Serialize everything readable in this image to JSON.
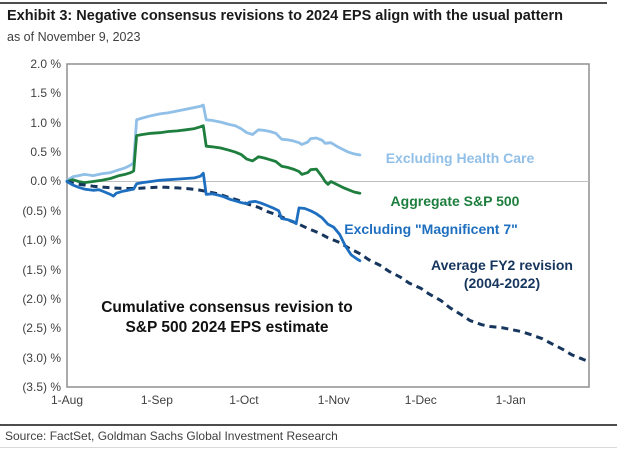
{
  "header": {
    "title": "Exhibit 3: Negative consensus revisions to 2024 EPS align with the usual pattern",
    "subtitle": "as of November 9, 2023"
  },
  "annotation": {
    "line1": "Cumulative consensus revision to",
    "line2": "S&P 500 2024 EPS estimate"
  },
  "footer": {
    "source": "Source: FactSet, Goldman Sachs Global Investment Research"
  },
  "chart_data": {
    "type": "line",
    "title": "Cumulative consensus revision to S&P 500 2024 EPS estimate",
    "as_of": "November 9, 2023",
    "grid": "zero-line-only",
    "legend_position": "inline-right",
    "x_axis": {
      "unit": "days since 1-Aug-2023",
      "range": [
        0,
        180
      ],
      "ticks": [
        {
          "day": 0,
          "label": "1-Aug"
        },
        {
          "day": 31,
          "label": "1-Sep"
        },
        {
          "day": 61,
          "label": "1-Oct"
        },
        {
          "day": 92,
          "label": "1-Nov"
        },
        {
          "day": 122,
          "label": "1-Dec"
        },
        {
          "day": 153,
          "label": "1-Jan"
        }
      ]
    },
    "y_axis": {
      "unit": "%",
      "range": [
        2.0,
        -3.5
      ],
      "ticks": [
        {
          "value": 2.0,
          "label": "2.0 %"
        },
        {
          "value": 1.5,
          "label": "1.5 %"
        },
        {
          "value": 1.0,
          "label": "1.0 %"
        },
        {
          "value": 0.5,
          "label": "0.5 %"
        },
        {
          "value": 0.0,
          "label": "0.0 %"
        },
        {
          "value": -0.5,
          "label": "(0.5) %"
        },
        {
          "value": -1.0,
          "label": "(1.0) %"
        },
        {
          "value": -1.5,
          "label": "(1.5) %"
        },
        {
          "value": -2.0,
          "label": "(2.0) %"
        },
        {
          "value": -2.5,
          "label": "(2.5) %"
        },
        {
          "value": -3.0,
          "label": "(3.0) %"
        },
        {
          "value": -3.5,
          "label": "(3.5) %"
        }
      ]
    },
    "series": [
      {
        "id": "excluding-health-care",
        "name": "Excluding Health Care",
        "color": "#90BFE8",
        "dashed": false,
        "points": [
          [
            0,
            0.02
          ],
          [
            2,
            0.08
          ],
          [
            4,
            0.1
          ],
          [
            6,
            0.12
          ],
          [
            9,
            0.1
          ],
          [
            12,
            0.13
          ],
          [
            15,
            0.15
          ],
          [
            18,
            0.2
          ],
          [
            20,
            0.23
          ],
          [
            22,
            0.28
          ],
          [
            23,
            0.32
          ],
          [
            24,
            1.05
          ],
          [
            26,
            1.08
          ],
          [
            29,
            1.12
          ],
          [
            32,
            1.15
          ],
          [
            35,
            1.17
          ],
          [
            38,
            1.2
          ],
          [
            41,
            1.23
          ],
          [
            44,
            1.26
          ],
          [
            46,
            1.28
          ],
          [
            47,
            1.3
          ],
          [
            48,
            1.05
          ],
          [
            50,
            1.04
          ],
          [
            53,
            1.01
          ],
          [
            56,
            0.97
          ],
          [
            58,
            0.95
          ],
          [
            60,
            0.9
          ],
          [
            62,
            0.83
          ],
          [
            64,
            0.8
          ],
          [
            66,
            0.88
          ],
          [
            68,
            0.87
          ],
          [
            70,
            0.85
          ],
          [
            72,
            0.82
          ],
          [
            74,
            0.72
          ],
          [
            76,
            0.71
          ],
          [
            78,
            0.69
          ],
          [
            80,
            0.66
          ],
          [
            81,
            0.63
          ],
          [
            83,
            0.67
          ],
          [
            84,
            0.73
          ],
          [
            86,
            0.74
          ],
          [
            88,
            0.7
          ],
          [
            89,
            0.65
          ],
          [
            91,
            0.66
          ],
          [
            93,
            0.6
          ],
          [
            95,
            0.55
          ],
          [
            97,
            0.5
          ],
          [
            99,
            0.47
          ],
          [
            101,
            0.45
          ]
        ]
      },
      {
        "id": "aggregate-sp500",
        "name": "Aggregate S&P 500",
        "color": "#1E7E3E",
        "dashed": false,
        "points": [
          [
            0,
            0.0
          ],
          [
            2,
            0.03
          ],
          [
            4,
            0.0
          ],
          [
            6,
            -0.02
          ],
          [
            9,
            0.0
          ],
          [
            12,
            0.02
          ],
          [
            15,
            0.05
          ],
          [
            18,
            0.1
          ],
          [
            20,
            0.12
          ],
          [
            22,
            0.15
          ],
          [
            23,
            0.18
          ],
          [
            24,
            0.78
          ],
          [
            26,
            0.8
          ],
          [
            29,
            0.82
          ],
          [
            32,
            0.83
          ],
          [
            35,
            0.85
          ],
          [
            38,
            0.86
          ],
          [
            41,
            0.88
          ],
          [
            44,
            0.9
          ],
          [
            46,
            0.93
          ],
          [
            47,
            0.95
          ],
          [
            48,
            0.6
          ],
          [
            50,
            0.59
          ],
          [
            53,
            0.57
          ],
          [
            56,
            0.53
          ],
          [
            58,
            0.5
          ],
          [
            60,
            0.46
          ],
          [
            62,
            0.38
          ],
          [
            64,
            0.35
          ],
          [
            66,
            0.42
          ],
          [
            68,
            0.4
          ],
          [
            70,
            0.37
          ],
          [
            72,
            0.34
          ],
          [
            74,
            0.26
          ],
          [
            76,
            0.24
          ],
          [
            78,
            0.21
          ],
          [
            80,
            0.17
          ],
          [
            81,
            0.12
          ],
          [
            83,
            0.15
          ],
          [
            84,
            0.2
          ],
          [
            86,
            0.21
          ],
          [
            88,
            0.08
          ],
          [
            89,
            0.0
          ],
          [
            90,
            -0.05
          ],
          [
            91,
            0.0
          ],
          [
            93,
            -0.05
          ],
          [
            95,
            -0.1
          ],
          [
            97,
            -0.14
          ],
          [
            99,
            -0.18
          ],
          [
            101,
            -0.2
          ]
        ]
      },
      {
        "id": "excluding-magnificent-7",
        "name": "Excluding \"Magnificent 7\"",
        "color": "#1E6FC0",
        "dashed": false,
        "points": [
          [
            0,
            0.0
          ],
          [
            2,
            -0.06
          ],
          [
            4,
            -0.1
          ],
          [
            6,
            -0.13
          ],
          [
            9,
            -0.15
          ],
          [
            11,
            -0.14
          ],
          [
            13,
            -0.18
          ],
          [
            15,
            -0.22
          ],
          [
            16,
            -0.25
          ],
          [
            17,
            -0.2
          ],
          [
            19,
            -0.17
          ],
          [
            21,
            -0.15
          ],
          [
            23,
            -0.13
          ],
          [
            24,
            -0.04
          ],
          [
            26,
            -0.02
          ],
          [
            29,
            0.0
          ],
          [
            32,
            0.02
          ],
          [
            35,
            0.03
          ],
          [
            38,
            0.04
          ],
          [
            41,
            0.05
          ],
          [
            44,
            0.06
          ],
          [
            46,
            0.09
          ],
          [
            47,
            0.14
          ],
          [
            48,
            -0.22
          ],
          [
            50,
            -0.21
          ],
          [
            52,
            -0.23
          ],
          [
            54,
            -0.26
          ],
          [
            56,
            -0.3
          ],
          [
            58,
            -0.33
          ],
          [
            60,
            -0.36
          ],
          [
            62,
            -0.38
          ],
          [
            63,
            -0.35
          ],
          [
            65,
            -0.34
          ],
          [
            67,
            -0.37
          ],
          [
            69,
            -0.41
          ],
          [
            71,
            -0.45
          ],
          [
            73,
            -0.5
          ],
          [
            74,
            -0.63
          ],
          [
            76,
            -0.65
          ],
          [
            78,
            -0.68
          ],
          [
            79,
            -0.72
          ],
          [
            80,
            -0.45
          ],
          [
            82,
            -0.46
          ],
          [
            84,
            -0.5
          ],
          [
            86,
            -0.55
          ],
          [
            88,
            -0.62
          ],
          [
            90,
            -0.73
          ],
          [
            92,
            -0.78
          ],
          [
            94,
            -0.9
          ],
          [
            96,
            -1.1
          ],
          [
            98,
            -1.25
          ],
          [
            100,
            -1.32
          ],
          [
            101,
            -1.35
          ]
        ]
      },
      {
        "id": "average-fy2-revision",
        "name": "Average FY2 revision (2004-2022)",
        "color": "#17365D",
        "dashed": true,
        "points": [
          [
            0,
            0.0
          ],
          [
            3,
            -0.04
          ],
          [
            6,
            -0.06
          ],
          [
            9,
            -0.08
          ],
          [
            13,
            -0.1
          ],
          [
            16,
            -0.11
          ],
          [
            20,
            -0.12
          ],
          [
            24,
            -0.12
          ],
          [
            27,
            -0.11
          ],
          [
            31,
            -0.1
          ],
          [
            34,
            -0.1
          ],
          [
            38,
            -0.11
          ],
          [
            41,
            -0.12
          ],
          [
            45,
            -0.14
          ],
          [
            48,
            -0.17
          ],
          [
            52,
            -0.21
          ],
          [
            55,
            -0.26
          ],
          [
            59,
            -0.32
          ],
          [
            62,
            -0.38
          ],
          [
            66,
            -0.44
          ],
          [
            69,
            -0.51
          ],
          [
            73,
            -0.58
          ],
          [
            76,
            -0.65
          ],
          [
            80,
            -0.73
          ],
          [
            83,
            -0.8
          ],
          [
            87,
            -0.88
          ],
          [
            90,
            -0.96
          ],
          [
            94,
            -1.04
          ],
          [
            97,
            -1.13
          ],
          [
            101,
            -1.23
          ],
          [
            104,
            -1.33
          ],
          [
            108,
            -1.43
          ],
          [
            111,
            -1.53
          ],
          [
            115,
            -1.63
          ],
          [
            118,
            -1.73
          ],
          [
            122,
            -1.82
          ],
          [
            125,
            -1.92
          ],
          [
            129,
            -2.03
          ],
          [
            132,
            -2.15
          ],
          [
            136,
            -2.27
          ],
          [
            139,
            -2.37
          ],
          [
            143,
            -2.44
          ],
          [
            146,
            -2.47
          ],
          [
            150,
            -2.49
          ],
          [
            153,
            -2.52
          ],
          [
            157,
            -2.56
          ],
          [
            160,
            -2.61
          ],
          [
            164,
            -2.68
          ],
          [
            167,
            -2.76
          ],
          [
            171,
            -2.86
          ],
          [
            174,
            -2.95
          ],
          [
            177,
            -3.01
          ],
          [
            179,
            -3.05
          ]
        ]
      }
    ],
    "colors": {
      "zero_gridline": "#bfbfbf",
      "plot_border": "#8f8f8f",
      "rule": "#4d4d4d"
    }
  }
}
